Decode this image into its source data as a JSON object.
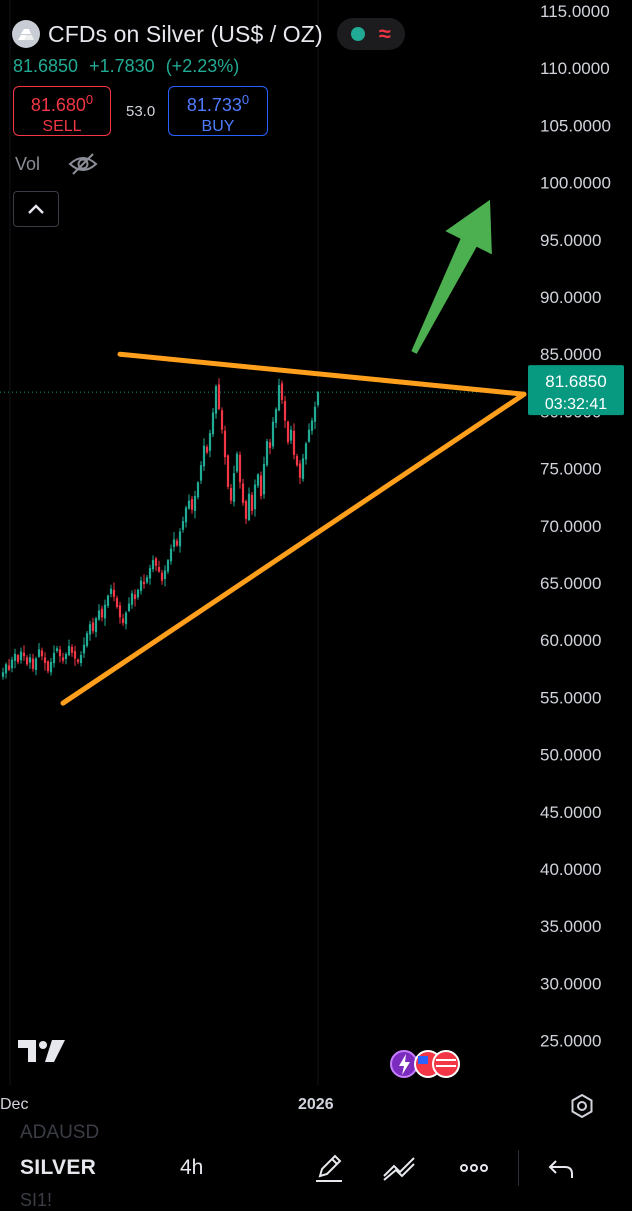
{
  "header": {
    "title": "CFDs on Silver (US$ / OZ)",
    "status_icon": "market-open-dot",
    "data_icon": "delayed-data-wave"
  },
  "quote": {
    "last": "81.6850",
    "change": "+1.7830",
    "change_pct": "(+2.23%)"
  },
  "trade": {
    "sell_price": "81.680",
    "sell_super": "0",
    "sell_label": "SELL",
    "spread": "53.0",
    "buy_price": "81.733",
    "buy_super": "0",
    "buy_label": "BUY"
  },
  "indicators": {
    "vol_label": "Vol"
  },
  "price_scale": {
    "ticks": [
      "115.0000",
      "110.0000",
      "105.0000",
      "100.0000",
      "95.0000",
      "90.0000",
      "85.0000",
      "80.0000",
      "75.0000",
      "70.0000",
      "65.0000",
      "60.0000",
      "55.0000",
      "50.0000",
      "45.0000",
      "40.0000",
      "35.0000",
      "30.0000",
      "25.0000"
    ],
    "current_price": "81.6850",
    "countdown": "03:32:41"
  },
  "time_scale": {
    "labels": [
      "Dec",
      "2026"
    ]
  },
  "chart_data": {
    "type": "candlestick",
    "symbol": "SILVER",
    "interval": "4h",
    "y_range": [
      22,
      116
    ],
    "last_close": 81.685,
    "closes": [
      57.2,
      57.9,
      57.4,
      58.3,
      58.8,
      58.1,
      59.0,
      58.6,
      57.9,
      58.5,
      57.5,
      58.4,
      59.2,
      58.6,
      58.0,
      57.3,
      58.1,
      58.9,
      59.3,
      58.6,
      58.2,
      58.8,
      59.5,
      58.9,
      58.4,
      58.1,
      58.7,
      59.6,
      60.6,
      61.4,
      60.8,
      61.9,
      62.6,
      62.0,
      63.1,
      63.9,
      64.5,
      63.8,
      62.9,
      62.0,
      61.5,
      62.4,
      63.2,
      64.1,
      63.6,
      64.4,
      65.2,
      64.9,
      65.5,
      66.3,
      67.0,
      66.5,
      66.0,
      65.2,
      66.1,
      67.0,
      68.0,
      68.8,
      68.3,
      69.5,
      70.4,
      71.6,
      72.2,
      71.4,
      72.6,
      73.8,
      75.3,
      77.0,
      76.4,
      78.1,
      79.9,
      82.2,
      80.2,
      78.4,
      76.0,
      73.4,
      72.2,
      74.6,
      76.3,
      73.8,
      72.0,
      70.6,
      72.8,
      71.3,
      73.6,
      74.5,
      72.6,
      75.4,
      77.4,
      76.8,
      79.1,
      80.2,
      82.3,
      81.0,
      79.2,
      77.3,
      78.4,
      76.2,
      75.3,
      74.2,
      75.9,
      77.2,
      78.4,
      79.2,
      80.4,
      81.685
    ],
    "annotations": [
      {
        "type": "trendline",
        "color": "#ff9f1c",
        "from": {
          "bar": 30,
          "price": 85.0
        },
        "to": {
          "bar": 132,
          "price": 81.5
        }
      },
      {
        "type": "trendline",
        "color": "#ff9f1c",
        "from": {
          "bar": 11,
          "price": 54.5
        },
        "to": {
          "bar": 132,
          "price": 81.5
        }
      },
      {
        "type": "arrow",
        "color": "#4caf50",
        "direction": "up",
        "from": {
          "bar": 106,
          "price": 82.0
        },
        "to": {
          "bar": 126,
          "price": 98.5
        }
      }
    ]
  },
  "toolbar": {
    "symbol": "SILVER",
    "interval": "4h",
    "ghost_above": "ADAUSD",
    "ghost_below": "SI1!"
  },
  "colors": {
    "up": "#22ab94",
    "down": "#f23645",
    "trendline": "#ff9f1c",
    "arrow": "#4caf50",
    "price_tag": "#089981",
    "background": "#000000"
  }
}
